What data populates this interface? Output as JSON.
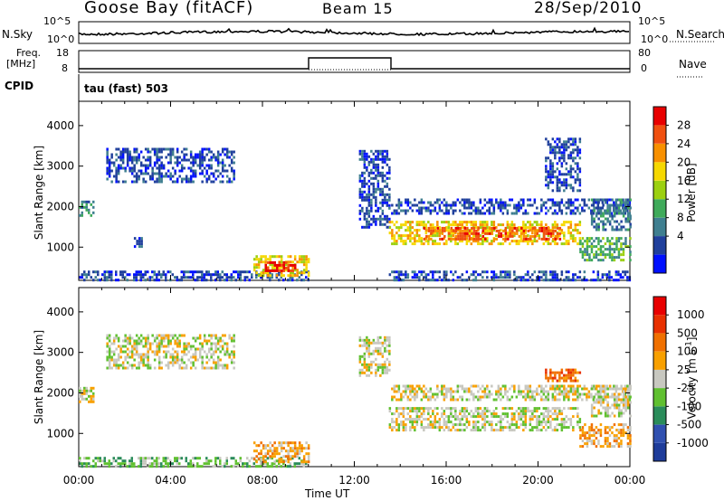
{
  "header": {
    "station": "Goose Bay (fitACF)",
    "beam": "Beam 15",
    "date": "28/Sep/2010"
  },
  "sky_panel": {
    "left_label": "N.Sky",
    "left_ticks": [
      "10^5",
      "10^0"
    ],
    "right_ticks": [
      "10^5",
      "10^0"
    ],
    "right_label": "N.Search"
  },
  "freq_panel": {
    "left_label_1": "Freq.",
    "left_label_2": "[MHz]",
    "left_ticks": [
      "18",
      "8"
    ],
    "right_ticks": [
      "80",
      "0"
    ],
    "right_label": "Nave"
  },
  "cpid": {
    "label": "CPID",
    "value": "tau (fast) 503"
  },
  "chart_data": [
    {
      "type": "heatmap",
      "name": "power",
      "ylabel": "Slant Range [km]",
      "ylim": [
        180,
        4600
      ],
      "yticks": [
        "4000",
        "3000",
        "2000",
        "1000"
      ],
      "xlim": [
        0,
        24
      ],
      "colorbar": {
        "label": "Power [dB]",
        "ticks": [
          "28",
          "24",
          "20",
          "16",
          "12",
          "8",
          "4"
        ],
        "colors": [
          "#0010ff",
          "#20409c",
          "#3f7f90",
          "#3faa5a",
          "#9cd010",
          "#f6d800",
          "#f89000",
          "#f05010",
          "#e80000"
        ]
      },
      "regions": [
        {
          "t": [
            0.0,
            0.6
          ],
          "r": [
            1750,
            2150
          ],
          "level": 2
        },
        {
          "t": [
            1.2,
            6.8
          ],
          "r": [
            2600,
            3450
          ],
          "level": 1
        },
        {
          "t": [
            2.3,
            2.7
          ],
          "r": [
            1000,
            1250
          ],
          "level": 1
        },
        {
          "t": [
            0.0,
            10.0
          ],
          "r": [
            200,
            420
          ],
          "level": 1
        },
        {
          "t": [
            7.6,
            10.0
          ],
          "r": [
            300,
            800
          ],
          "level": 5
        },
        {
          "t": [
            8.1,
            9.4
          ],
          "r": [
            400,
            650
          ],
          "level": 8
        },
        {
          "t": [
            12.2,
            13.5
          ],
          "r": [
            1500,
            3400
          ],
          "level": 1
        },
        {
          "t": [
            13.5,
            21.8
          ],
          "r": [
            1050,
            1650
          ],
          "level": 5
        },
        {
          "t": [
            15.0,
            21.0
          ],
          "r": [
            1200,
            1500
          ],
          "level": 7
        },
        {
          "t": [
            13.6,
            24.0
          ],
          "r": [
            1800,
            2200
          ],
          "level": 1
        },
        {
          "t": [
            20.3,
            21.8
          ],
          "r": [
            2400,
            3700
          ],
          "level": 1
        },
        {
          "t": [
            21.8,
            24.0
          ],
          "r": [
            700,
            1250
          ],
          "level": 3
        },
        {
          "t": [
            22.3,
            24.0
          ],
          "r": [
            1450,
            2200
          ],
          "level": 2
        },
        {
          "t": [
            13.5,
            24.0
          ],
          "r": [
            200,
            420
          ],
          "level": 1
        }
      ]
    },
    {
      "type": "heatmap",
      "name": "velocity",
      "ylabel": "Slant Range [km]",
      "ylim": [
        180,
        4600
      ],
      "yticks": [
        "4000",
        "3000",
        "2000",
        "1000"
      ],
      "xlim": [
        0,
        24
      ],
      "xticks": [
        "00:00",
        "04:00",
        "08:00",
        "12:00",
        "16:00",
        "20:00",
        "00:00"
      ],
      "xlabel": "Time UT",
      "colorbar": {
        "label": "Velocity [m s^-1]",
        "ticks": [
          "1000",
          "500",
          "100",
          "25",
          "-25",
          "-100",
          "-500",
          "-1000"
        ],
        "colors": [
          "#1e3c9a",
          "#3050b0",
          "#2a8c5a",
          "#60c030",
          "#c8c8c0",
          "#f8a000",
          "#f07000",
          "#e83000",
          "#e80000"
        ]
      },
      "regions": [
        {
          "t": [
            0.0,
            0.6
          ],
          "r": [
            1750,
            2150
          ],
          "level": 4
        },
        {
          "t": [
            1.2,
            6.8
          ],
          "r": [
            2600,
            3450
          ],
          "level": 4
        },
        {
          "t": [
            0.0,
            10.0
          ],
          "r": [
            200,
            420
          ],
          "level": 3
        },
        {
          "t": [
            7.6,
            10.0
          ],
          "r": [
            300,
            800
          ],
          "level": 5
        },
        {
          "t": [
            12.2,
            13.5
          ],
          "r": [
            2400,
            3400
          ],
          "level": 4
        },
        {
          "t": [
            13.5,
            21.8
          ],
          "r": [
            1050,
            1650
          ],
          "level": 4
        },
        {
          "t": [
            13.6,
            24.0
          ],
          "r": [
            1800,
            2200
          ],
          "level": 4
        },
        {
          "t": [
            21.8,
            24.0
          ],
          "r": [
            700,
            1250
          ],
          "level": 5
        },
        {
          "t": [
            22.3,
            24.0
          ],
          "r": [
            1450,
            2200
          ],
          "level": 4
        },
        {
          "t": [
            20.3,
            21.8
          ],
          "r": [
            2300,
            2600
          ],
          "level": 6
        }
      ]
    }
  ]
}
